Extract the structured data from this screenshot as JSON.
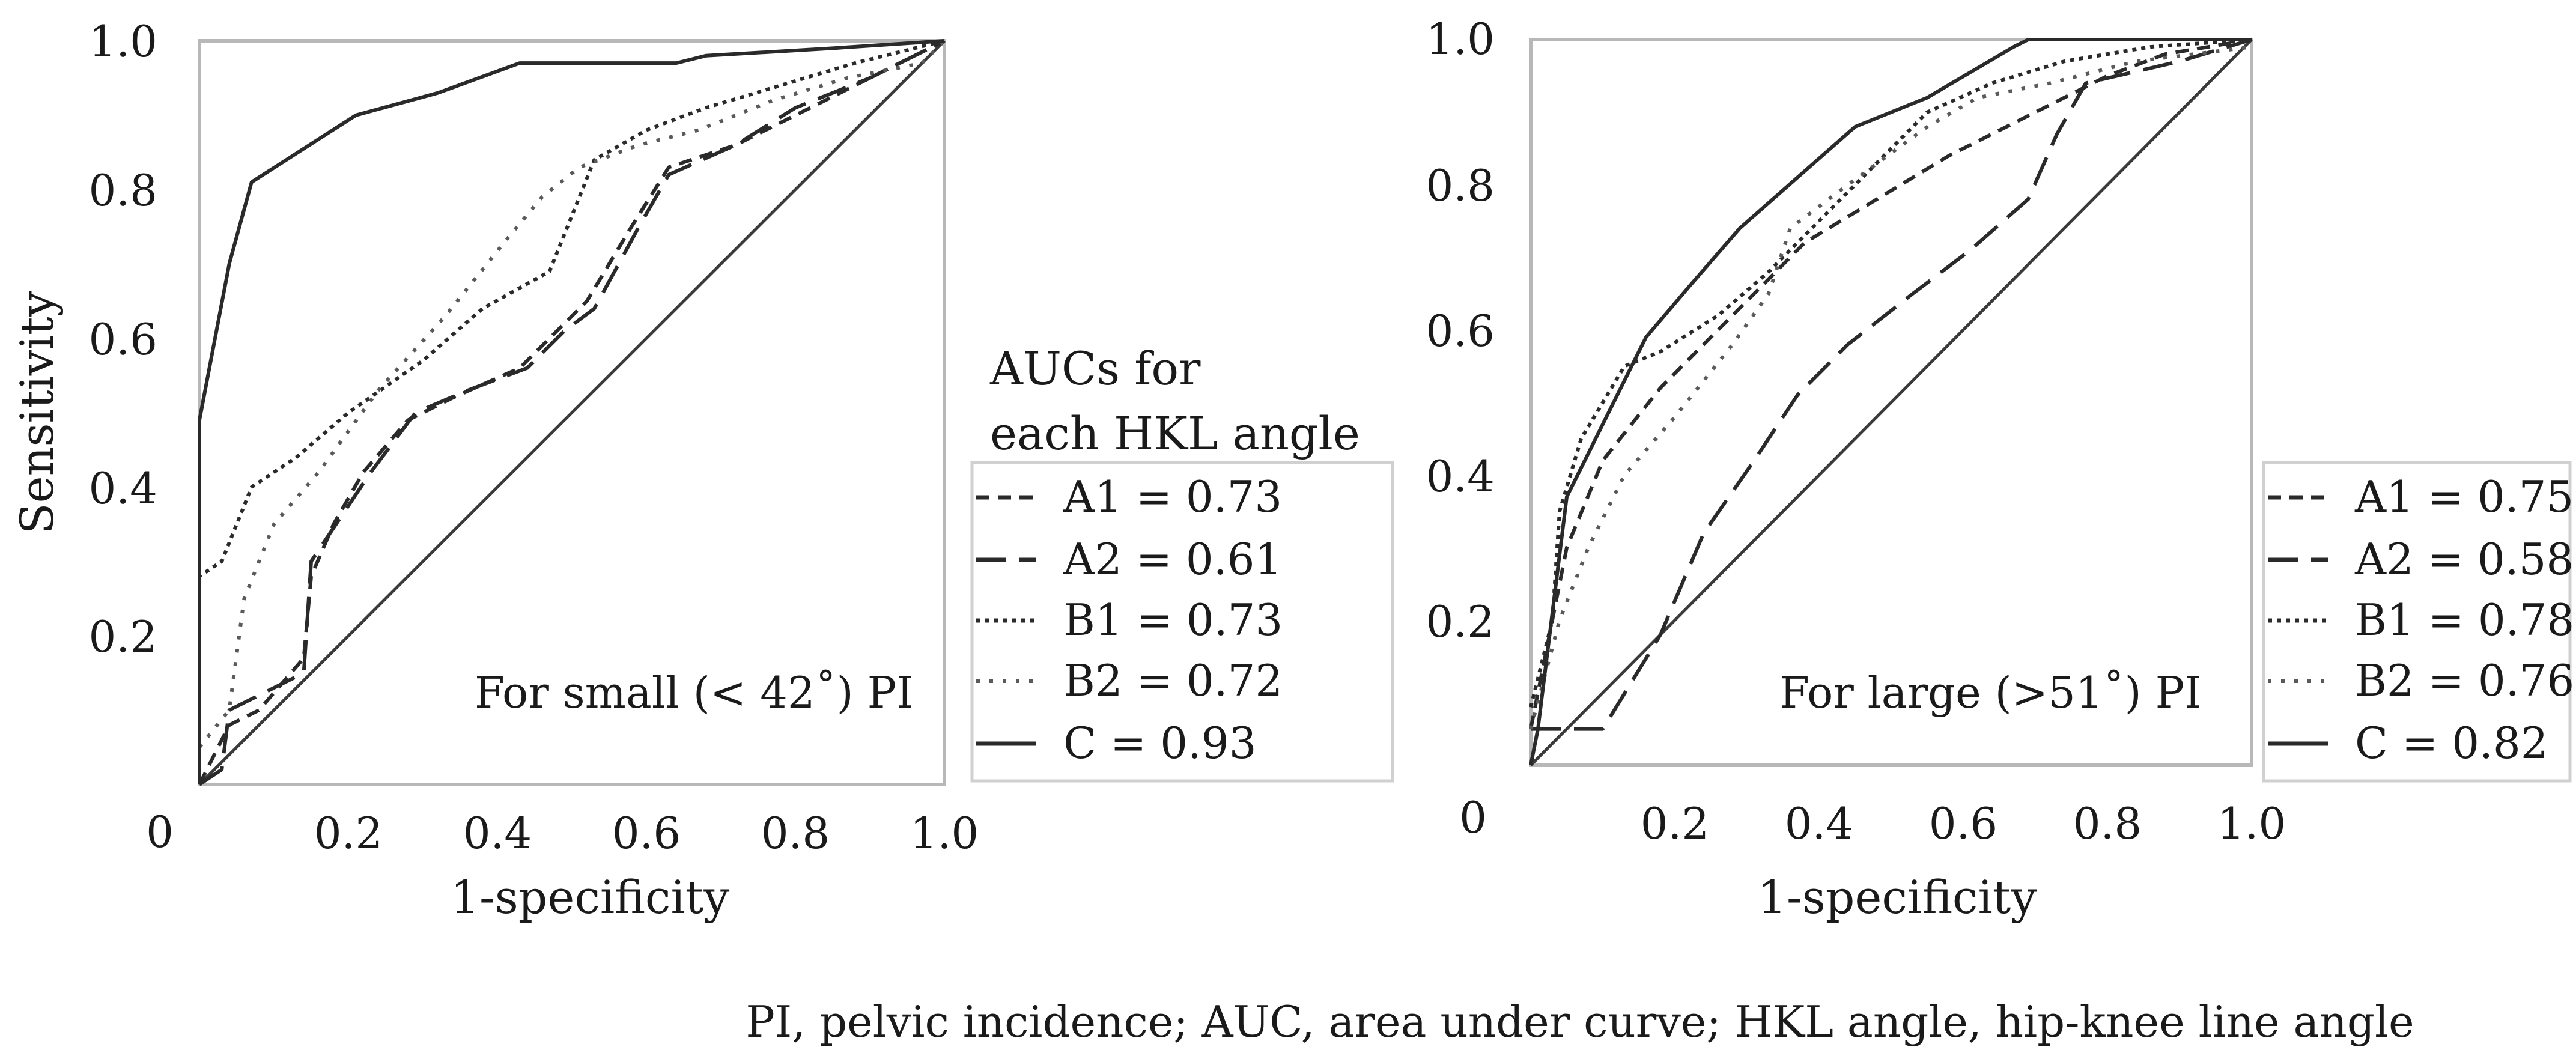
{
  "figure": {
    "caption": "PI, pelvic incidence; AUC, area under curve; HKL angle, hip-knee line angle"
  },
  "chart_data": [
    {
      "type": "line",
      "panel_label": "For small (< 42˚) PI",
      "xlabel": "1-specificity",
      "ylabel": "Sensitivity",
      "xlim": [
        0,
        1
      ],
      "ylim": [
        0,
        1
      ],
      "x_ticks": [
        "0.2",
        "0.4",
        "0.6",
        "0.8",
        "1.0"
      ],
      "y_ticks": [
        "0.2",
        "0.4",
        "0.6",
        "0.8",
        "1.0"
      ],
      "origin_label": "0",
      "legend_title_line1": "AUCs for",
      "legend_title_line2": "each HKL angle",
      "reference_line": [
        [
          0,
          0
        ],
        [
          1,
          1
        ]
      ],
      "series": [
        {
          "name": "A1",
          "legend": "A1  = 0.73",
          "auc": 0.73,
          "dash": "dash",
          "points": [
            [
              0,
              0
            ],
            [
              0.04,
              0.08
            ],
            [
              0.08,
              0.1
            ],
            [
              0.14,
              0.17
            ],
            [
              0.15,
              0.28
            ],
            [
              0.18,
              0.35
            ],
            [
              0.22,
              0.42
            ],
            [
              0.28,
              0.49
            ],
            [
              0.34,
              0.52
            ],
            [
              0.43,
              0.56
            ],
            [
              0.47,
              0.6
            ],
            [
              0.52,
              0.65
            ],
            [
              0.58,
              0.75
            ],
            [
              0.63,
              0.83
            ],
            [
              0.72,
              0.86
            ],
            [
              0.8,
              0.9
            ],
            [
              0.9,
              0.95
            ],
            [
              1,
              1
            ]
          ]
        },
        {
          "name": "A2",
          "legend": "A2  = 0.61",
          "auc": 0.61,
          "dash": "longdash",
          "points": [
            [
              0,
              0
            ],
            [
              0.03,
              0.02
            ],
            [
              0.04,
              0.1
            ],
            [
              0.14,
              0.15
            ],
            [
              0.15,
              0.3
            ],
            [
              0.19,
              0.36
            ],
            [
              0.23,
              0.42
            ],
            [
              0.29,
              0.5
            ],
            [
              0.36,
              0.53
            ],
            [
              0.44,
              0.56
            ],
            [
              0.49,
              0.61
            ],
            [
              0.53,
              0.64
            ],
            [
              0.59,
              0.75
            ],
            [
              0.63,
              0.82
            ],
            [
              0.72,
              0.86
            ],
            [
              0.8,
              0.91
            ],
            [
              0.9,
              0.95
            ],
            [
              1,
              1
            ]
          ]
        },
        {
          "name": "B1",
          "legend": "B1  = 0.73",
          "auc": 0.73,
          "dash": "dot",
          "points": [
            [
              0,
              0.12
            ],
            [
              0,
              0.28
            ],
            [
              0.03,
              0.3
            ],
            [
              0.07,
              0.4
            ],
            [
              0.13,
              0.44
            ],
            [
              0.2,
              0.5
            ],
            [
              0.3,
              0.57
            ],
            [
              0.38,
              0.64
            ],
            [
              0.47,
              0.69
            ],
            [
              0.53,
              0.84
            ],
            [
              0.6,
              0.88
            ],
            [
              0.68,
              0.91
            ],
            [
              0.78,
              0.94
            ],
            [
              0.88,
              0.97
            ],
            [
              1,
              1
            ]
          ]
        },
        {
          "name": "B2",
          "legend": "B2  = 0.72",
          "auc": 0.72,
          "dash": "sparsedot",
          "points": [
            [
              0,
              0.05
            ],
            [
              0.04,
              0.1
            ],
            [
              0.06,
              0.25
            ],
            [
              0.1,
              0.35
            ],
            [
              0.16,
              0.42
            ],
            [
              0.24,
              0.53
            ],
            [
              0.33,
              0.63
            ],
            [
              0.41,
              0.73
            ],
            [
              0.46,
              0.79
            ],
            [
              0.51,
              0.83
            ],
            [
              0.59,
              0.86
            ],
            [
              0.67,
              0.88
            ],
            [
              0.77,
              0.92
            ],
            [
              0.87,
              0.95
            ],
            [
              0.97,
              0.97
            ],
            [
              1,
              1
            ]
          ]
        },
        {
          "name": "C",
          "legend": "C     = 0.93",
          "auc": 0.93,
          "dash": "solid",
          "points": [
            [
              0,
              0
            ],
            [
              0,
              0.49
            ],
            [
              0.04,
              0.7
            ],
            [
              0.07,
              0.81
            ],
            [
              0.21,
              0.9
            ],
            [
              0.32,
              0.93
            ],
            [
              0.43,
              0.97
            ],
            [
              0.53,
              0.97
            ],
            [
              0.64,
              0.97
            ],
            [
              0.68,
              0.98
            ],
            [
              0.85,
              0.99
            ],
            [
              1,
              1
            ]
          ]
        }
      ]
    },
    {
      "type": "line",
      "panel_label": "For large (>51˚) PI",
      "xlabel": "1-specificity",
      "ylabel": "",
      "xlim": [
        0,
        1
      ],
      "ylim": [
        0,
        1
      ],
      "x_ticks": [
        "0.2",
        "0.4",
        "0.6",
        "0.8",
        "1.0"
      ],
      "y_ticks": [
        "0.2",
        "0.4",
        "0.6",
        "0.8",
        "1.0"
      ],
      "origin_label": "0",
      "reference_line": [
        [
          0,
          0
        ],
        [
          1,
          1
        ]
      ],
      "series": [
        {
          "name": "A1",
          "legend": "A1 = 0.75",
          "auc": 0.75,
          "dash": "dash",
          "points": [
            [
              0,
              0.05
            ],
            [
              0.02,
              0.15
            ],
            [
              0.05,
              0.3
            ],
            [
              0.1,
              0.42
            ],
            [
              0.18,
              0.52
            ],
            [
              0.28,
              0.62
            ],
            [
              0.38,
              0.72
            ],
            [
              0.48,
              0.78
            ],
            [
              0.58,
              0.84
            ],
            [
              0.7,
              0.9
            ],
            [
              0.8,
              0.95
            ],
            [
              0.88,
              0.98
            ],
            [
              1,
              1
            ]
          ]
        },
        {
          "name": "A2",
          "legend": "A2 = 0.58",
          "auc": 0.58,
          "dash": "longdash",
          "points": [
            [
              0,
              0.05
            ],
            [
              0.1,
              0.05
            ],
            [
              0.18,
              0.18
            ],
            [
              0.24,
              0.32
            ],
            [
              0.31,
              0.42
            ],
            [
              0.37,
              0.51
            ],
            [
              0.44,
              0.58
            ],
            [
              0.53,
              0.65
            ],
            [
              0.61,
              0.71
            ],
            [
              0.69,
              0.78
            ],
            [
              0.73,
              0.87
            ],
            [
              0.77,
              0.94
            ],
            [
              0.9,
              0.97
            ],
            [
              1,
              1
            ]
          ]
        },
        {
          "name": "B1",
          "legend": "B1 = 0.78",
          "auc": 0.78,
          "dash": "dot",
          "points": [
            [
              0,
              0.08
            ],
            [
              0.03,
              0.2
            ],
            [
              0.04,
              0.35
            ],
            [
              0.07,
              0.45
            ],
            [
              0.13,
              0.55
            ],
            [
              0.18,
              0.57
            ],
            [
              0.26,
              0.62
            ],
            [
              0.33,
              0.68
            ],
            [
              0.4,
              0.75
            ],
            [
              0.47,
              0.82
            ],
            [
              0.55,
              0.9
            ],
            [
              0.64,
              0.94
            ],
            [
              0.74,
              0.97
            ],
            [
              0.86,
              0.99
            ],
            [
              1,
              1
            ]
          ]
        },
        {
          "name": "B2",
          "legend": "B2 = 0.76",
          "auc": 0.76,
          "dash": "sparsedot",
          "points": [
            [
              0,
              0.05
            ],
            [
              0.04,
              0.2
            ],
            [
              0.08,
              0.3
            ],
            [
              0.13,
              0.4
            ],
            [
              0.2,
              0.48
            ],
            [
              0.28,
              0.58
            ],
            [
              0.33,
              0.65
            ],
            [
              0.36,
              0.74
            ],
            [
              0.44,
              0.8
            ],
            [
              0.55,
              0.88
            ],
            [
              0.62,
              0.92
            ],
            [
              0.72,
              0.94
            ],
            [
              0.84,
              0.97
            ],
            [
              1,
              0.99
            ]
          ]
        },
        {
          "name": "C",
          "legend": "C    = 0.82",
          "auc": 0.82,
          "dash": "solid",
          "points": [
            [
              0,
              0
            ],
            [
              0.01,
              0.05
            ],
            [
              0.05,
              0.37
            ],
            [
              0.09,
              0.45
            ],
            [
              0.16,
              0.59
            ],
            [
              0.22,
              0.66
            ],
            [
              0.29,
              0.74
            ],
            [
              0.37,
              0.81
            ],
            [
              0.45,
              0.88
            ],
            [
              0.55,
              0.92
            ],
            [
              0.67,
              0.99
            ],
            [
              0.69,
              1
            ],
            [
              0.8,
              1
            ],
            [
              1,
              1
            ]
          ]
        }
      ]
    }
  ]
}
